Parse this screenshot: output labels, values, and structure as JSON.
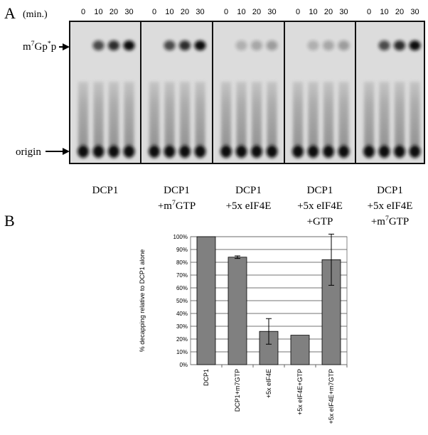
{
  "panel_a": {
    "label": "A",
    "time_unit": "(min.)",
    "times": [
      0,
      10,
      20,
      30
    ],
    "product_label": [
      "m",
      "7",
      "Gp",
      "*",
      "p"
    ],
    "origin_label": "origin",
    "lanes": [
      [
        [
          "DCP1"
        ]
      ],
      [
        [
          "DCP1"
        ],
        [
          "+m",
          "7",
          "GTP"
        ]
      ],
      [
        [
          "DCP1"
        ],
        [
          "+5x eIF4E"
        ]
      ],
      [
        [
          "DCP1"
        ],
        [
          "+5x eIF4E"
        ],
        [
          "+GTP"
        ]
      ],
      [
        [
          "DCP1"
        ],
        [
          "+5x eIF4E"
        ],
        [
          "+m",
          "7",
          "GTP"
        ]
      ]
    ]
  },
  "chart_data": {
    "type": "bar",
    "panel_label": "B",
    "y_label": "% decapping relative to DCP1 alone",
    "categories": [
      "DCP1",
      "DCP1+m7GTP",
      "+5x eIF4E",
      "+5x eIF4E+GTP",
      "+5x eIF4E+m7GTP"
    ],
    "values": [
      100,
      84,
      26,
      23,
      82
    ],
    "errors": [
      0,
      1,
      10,
      0,
      20
    ],
    "color": "#808080",
    "ylim": [
      0,
      100
    ],
    "yticks": [
      {
        "value": 0,
        "label": "0%"
      },
      {
        "value": 10,
        "label": "10%"
      },
      {
        "value": 20,
        "label": "20%"
      },
      {
        "value": 30,
        "label": "30%"
      },
      {
        "value": 40,
        "label": "40%"
      },
      {
        "value": 50,
        "label": "50%"
      },
      {
        "value": 60,
        "label": "60%"
      },
      {
        "value": 70,
        "label": "70%"
      },
      {
        "value": 80,
        "label": "80%"
      },
      {
        "value": 90,
        "label": "90%"
      },
      {
        "value": 100,
        "label": "100%"
      }
    ],
    "grid": true
  }
}
